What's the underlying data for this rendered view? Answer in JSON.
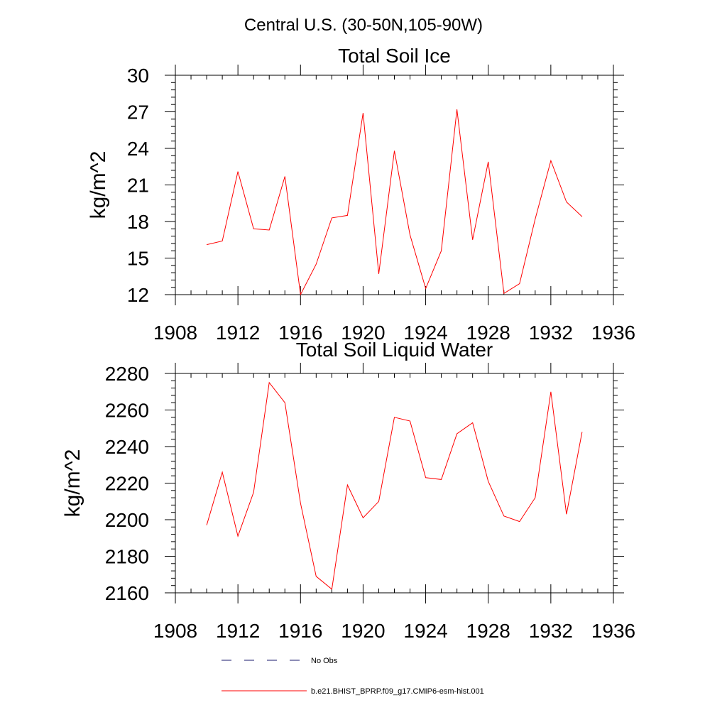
{
  "figure": {
    "suptitle": "Central U.S. (30-50N,105-90W)"
  },
  "legend": {
    "items": [
      {
        "label": "No Obs",
        "color": "#1a1a6e",
        "style": "dashed"
      },
      {
        "label": "b.e21.BHIST_BPRP.f09_g17.CMIP6-esm-hist.001",
        "color": "#ff0000",
        "style": "solid"
      }
    ]
  },
  "chart_data": [
    {
      "type": "line",
      "title": "Total Soil Ice",
      "xlabel": "",
      "ylabel": "kg/m^2",
      "xlim": [
        1908,
        1936
      ],
      "ylim": [
        12,
        30
      ],
      "xticks": [
        1908,
        1912,
        1916,
        1920,
        1924,
        1928,
        1932,
        1936
      ],
      "yticks": [
        12,
        15,
        18,
        21,
        24,
        27,
        30
      ],
      "x": [
        1910,
        1911,
        1912,
        1913,
        1914,
        1915,
        1916,
        1917,
        1918,
        1919,
        1920,
        1921,
        1922,
        1923,
        1924,
        1925,
        1926,
        1927,
        1928,
        1929,
        1930,
        1931,
        1932,
        1933,
        1934
      ],
      "series": [
        {
          "color": "#ff0000",
          "values": [
            16.1,
            16.4,
            22.1,
            17.4,
            17.3,
            21.7,
            12.0,
            14.5,
            18.3,
            18.5,
            26.9,
            13.7,
            23.8,
            16.9,
            12.5,
            15.6,
            27.2,
            16.5,
            22.9,
            12.1,
            12.9,
            18.2,
            23.0,
            19.6,
            18.4
          ]
        }
      ]
    },
    {
      "type": "line",
      "title": "Total Soil Liquid Water",
      "xlabel": "",
      "ylabel": "kg/m^2",
      "xlim": [
        1908,
        1936
      ],
      "ylim": [
        2160,
        2280
      ],
      "xticks": [
        1908,
        1912,
        1916,
        1920,
        1924,
        1928,
        1932,
        1936
      ],
      "yticks": [
        2160,
        2180,
        2200,
        2220,
        2240,
        2260,
        2280
      ],
      "x": [
        1910,
        1911,
        1912,
        1913,
        1914,
        1915,
        1916,
        1917,
        1918,
        1919,
        1920,
        1921,
        1922,
        1923,
        1924,
        1925,
        1926,
        1927,
        1928,
        1929,
        1930,
        1931,
        1932,
        1933,
        1934
      ],
      "series": [
        {
          "color": "#ff0000",
          "values": [
            2197,
            2226,
            2191,
            2215,
            2275,
            2264,
            2209,
            2169,
            2162,
            2219,
            2201,
            2210,
            2256,
            2254,
            2223,
            2222,
            2247,
            2253,
            2221,
            2202,
            2199,
            2212,
            2270,
            2203,
            2248
          ]
        }
      ]
    }
  ]
}
